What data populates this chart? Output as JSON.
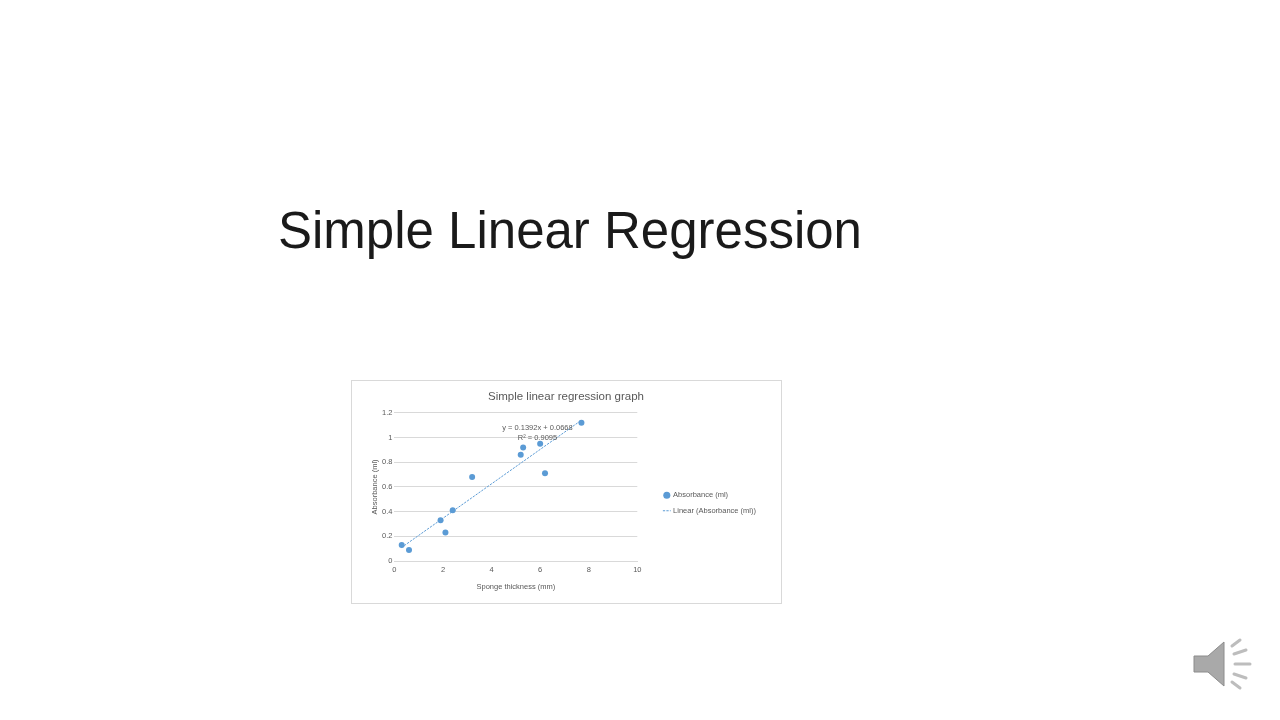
{
  "chart_data": {
    "type": "scatter",
    "title": "Simple Linear Regression",
    "subtitle": "Simple linear regression graph",
    "xlabel": "Sponge thickness (mm)",
    "ylabel": "Absorbance (ml)",
    "annotations": [
      "y = 0.1392x + 0.0668",
      "R² = 0.9095"
    ],
    "series": [
      {
        "name": "Absorbance (ml)",
        "color": "#5b9bd5",
        "x": [
          0.3,
          0.6,
          1.9,
          2.1,
          2.4,
          3.2,
          5.2,
          5.3,
          6.0,
          6.2,
          7.7
        ],
        "values": [
          0.13,
          0.09,
          0.33,
          0.23,
          0.41,
          0.68,
          0.86,
          0.92,
          0.95,
          0.71,
          1.12
        ]
      },
      {
        "name": "Linear (Absorbance (ml))",
        "type": "line",
        "color": "#5b9bd5",
        "x": [
          0.3,
          7.7
        ],
        "values": [
          0.11,
          1.14
        ],
        "line_style": "dotted",
        "marker": "none"
      }
    ],
    "xlim": [
      0,
      10
    ],
    "xticks": [
      0,
      2,
      4,
      6,
      8,
      10
    ],
    "ylim": [
      0,
      1.2
    ],
    "yticks": [
      0,
      0.2,
      0.4,
      0.6,
      0.8,
      1,
      1.2
    ],
    "grid": "y",
    "legend": "right",
    "marker": "circle"
  }
}
